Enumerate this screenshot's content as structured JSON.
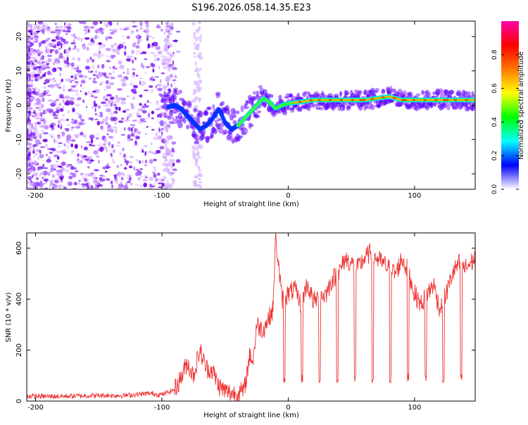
{
  "title": "S196.2026.058.14.35.E23",
  "colors": {
    "trace": "#ee3333",
    "frame": "#000000",
    "scatter": "#7a00ff",
    "background": "#ffffff"
  },
  "chart_data": [
    {
      "type": "heatmap",
      "xlabel": "Height of straight line (km)",
      "ylabel": "Frequency (Hz)",
      "xlim": [
        -207,
        148
      ],
      "ylim": [
        -24.5,
        24.5
      ],
      "xticks": [
        -200,
        -100,
        0,
        100
      ],
      "xtick_labels": [
        "-200",
        "-100",
        "0",
        "100"
      ],
      "yticks": [
        -20,
        -10,
        0,
        10,
        20
      ],
      "ytick_labels": [
        "-20",
        "-10",
        "0",
        "10",
        "20"
      ],
      "colorbar": {
        "label": "Normalized spectral amplitude",
        "range": [
          0,
          1
        ],
        "ticks": [
          0,
          0.2,
          0.4,
          0.6,
          0.8
        ],
        "tick_labels": [
          "0.0",
          "0.2",
          "0.4",
          "0.6",
          "0.8"
        ],
        "stops": [
          "#ffffff",
          "#0000ff",
          "#00ffff",
          "#00ff00",
          "#ffff00",
          "#ff7700",
          "#ff0000",
          "#ff00aa"
        ]
      },
      "ridge": {
        "x": [
          -95,
          -90,
          -85,
          -80,
          -75,
          -70,
          -65,
          -60,
          -55,
          -50,
          -45,
          -40,
          -35,
          -30,
          -25,
          -20,
          -15,
          -10,
          -5,
          0,
          10,
          20,
          40,
          60,
          80,
          90,
          100,
          110,
          120,
          130,
          148
        ],
        "y": [
          -0.5,
          0,
          -1,
          -3,
          -5,
          -7,
          -6,
          -4,
          -1,
          -5,
          -7,
          -6,
          -4,
          -2,
          0,
          2,
          1,
          -1,
          0,
          0.5,
          1,
          1.5,
          1.5,
          1.5,
          2.5,
          1.5,
          1.5,
          1.5,
          1.5,
          1.5,
          1.5
        ]
      }
    },
    {
      "type": "line",
      "xlabel": "Height of straight line (km)",
      "ylabel": "SNR (10 * v/v)",
      "xlim": [
        -207,
        148
      ],
      "ylim": [
        0,
        660
      ],
      "xticks": [
        -200,
        -100,
        0,
        100
      ],
      "xtick_labels": [
        "-200",
        "-100",
        "0",
        "100"
      ],
      "yticks": [
        0,
        200,
        400,
        600
      ],
      "ytick_labels": [
        "0",
        "200",
        "400",
        "600"
      ],
      "series": [
        {
          "name": "SNR",
          "x": [
            -207,
            -190,
            -170,
            -150,
            -130,
            -110,
            -100,
            -90,
            -85,
            -80,
            -75,
            -70,
            -65,
            -60,
            -55,
            -50,
            -45,
            -40,
            -35,
            -30,
            -28,
            -25,
            -20,
            -15,
            -12,
            -10,
            -5,
            0,
            5,
            10,
            15,
            20,
            25,
            30,
            35,
            40,
            45,
            50,
            55,
            60,
            65,
            70,
            75,
            80,
            85,
            90,
            95,
            100,
            105,
            110,
            115,
            120,
            125,
            130,
            135,
            140,
            148
          ],
          "y": [
            20,
            18,
            20,
            22,
            22,
            30,
            25,
            45,
            90,
            150,
            100,
            200,
            130,
            120,
            60,
            40,
            30,
            30,
            40,
            190,
            150,
            300,
            280,
            330,
            360,
            650,
            400,
            420,
            440,
            380,
            460,
            390,
            410,
            420,
            480,
            500,
            560,
            540,
            520,
            560,
            580,
            560,
            540,
            520,
            500,
            560,
            510,
            420,
            380,
            420,
            460,
            360,
            420,
            500,
            540,
            520,
            560
          ]
        }
      ]
    }
  ]
}
